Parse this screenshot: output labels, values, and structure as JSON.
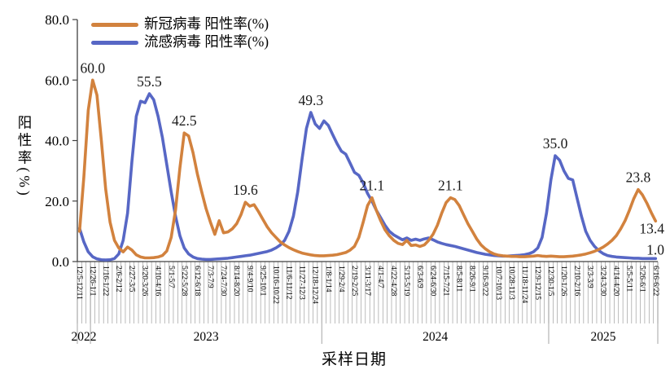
{
  "chart_data": {
    "type": "line",
    "title": "",
    "xlabel": "采样日期",
    "ylabel": "阳性率(%)",
    "ylim": [
      0,
      80
    ],
    "y_ticks": [
      "0.0",
      "20.0",
      "40.0",
      "60.0",
      "80.0"
    ],
    "grid": "off",
    "legend_position": "top-left",
    "label_interval_weeks": 3,
    "x_tick_labels": [
      "12/5-12/11",
      "12/26-1/1",
      "1/16-1/22",
      "2/6-2/12",
      "2/27-3/5",
      "3/20-3/26",
      "4/10-4/16",
      "5/1-5/7",
      "5/22-5/28",
      "6/12-6/18",
      "7/3-7/9",
      "7/24-7/30",
      "8/14-8/20",
      "9/4-9/10",
      "9/25-10/1",
      "10/16-10/22",
      "11/6-11/12",
      "11/27-12/3",
      "12/18-12/24",
      "1/8-1/14",
      "1/29-2/4",
      "2/19-2/25",
      "3/11-3/17",
      "4/1-4/7",
      "4/22-4/28",
      "5/13-5/19",
      "6/3-6/9",
      "6/24-6/30",
      "7/15-7/21",
      "8/5-8/11",
      "8/26-9/1",
      "9/16-9/22",
      "10/7-10/13",
      "10/28-11/3",
      "11/18-11/24",
      "12/9-12/15",
      "12/30-1/5",
      "1/20-1/26",
      "2/10-2/16",
      "3/3-3/9",
      "3/24-3/30",
      "4/14-4/20",
      "5/5-5/11",
      "5/26-6/1",
      "6/16-6/22"
    ],
    "year_sections": [
      {
        "label": "2022",
        "from_line": 0,
        "to_line": 3
      },
      {
        "label": "2023",
        "from_line": 3,
        "to_line": 56
      },
      {
        "label": "2024",
        "from_line": 56,
        "to_line": 108
      },
      {
        "label": "2025",
        "from_line": 108,
        "to_line": 133
      }
    ],
    "legend": [
      {
        "label": "新冠病毒 阳性率(%)",
        "color": "#D2823E"
      },
      {
        "label": "流感病毒 阳性率(%)",
        "color": "#5767C5"
      }
    ],
    "series": [
      {
        "name": "新冠病毒 阳性率(%)",
        "color": "#D2823E",
        "values": [
          10,
          28,
          50,
          60,
          55,
          40,
          24,
          13,
          7,
          4.5,
          3.2,
          4.8,
          3.8,
          2.2,
          1.5,
          1.2,
          1.2,
          1.3,
          1.5,
          2,
          3.5,
          8,
          17,
          31,
          42.5,
          41.5,
          36,
          29,
          23,
          17.5,
          13,
          9,
          13.5,
          9.5,
          9.8,
          10.8,
          12.5,
          15.5,
          19.6,
          18.3,
          18.8,
          16.5,
          14,
          11.5,
          9.5,
          8,
          6.5,
          5.5,
          4.6,
          3.9,
          3.3,
          2.8,
          2.5,
          2.2,
          2,
          1.9,
          1.9,
          2,
          2.1,
          2.3,
          2.6,
          3,
          3.8,
          5,
          8,
          13,
          18.5,
          21.1,
          17,
          13.5,
          10.5,
          8.5,
          7,
          6,
          5.6,
          7,
          5.3,
          5.5,
          5,
          5.5,
          7,
          9,
          12,
          16,
          19.5,
          21.1,
          20.5,
          18.5,
          15.5,
          12.5,
          10,
          7.5,
          5.5,
          4.2,
          3.2,
          2.5,
          2.1,
          1.9,
          1.8,
          1.7,
          1.7,
          1.6,
          1.6,
          1.7,
          1.8,
          2,
          1.8,
          1.7,
          1.8,
          1.7,
          1.6,
          1.6,
          1.7,
          1.8,
          2,
          2.2,
          2.5,
          2.9,
          3.4,
          4,
          4.8,
          5.8,
          7,
          8.6,
          10.8,
          13.5,
          17,
          20.8,
          23.8,
          22,
          19.3,
          16.2,
          13.4
        ]
      },
      {
        "name": "流感病毒 阳性率(%)",
        "color": "#5767C5",
        "values": [
          11,
          6.5,
          3.2,
          1.6,
          0.9,
          0.6,
          0.5,
          0.6,
          1,
          2.5,
          7,
          16,
          33,
          48,
          53,
          52.5,
          55.5,
          53.5,
          48,
          41,
          32,
          23,
          15,
          8.5,
          4.5,
          2.5,
          1.5,
          1,
          0.8,
          0.7,
          0.7,
          0.8,
          0.9,
          1,
          1.1,
          1.3,
          1.5,
          1.7,
          1.9,
          2.1,
          2.4,
          2.7,
          3,
          3.3,
          3.8,
          4.5,
          5.5,
          7,
          10,
          15,
          23,
          34,
          44,
          49.3,
          45.5,
          44,
          46.5,
          45,
          42,
          39,
          36.5,
          35.5,
          32.5,
          29.5,
          28.5,
          26,
          22.5,
          20,
          17,
          14.5,
          12,
          10,
          8.8,
          8,
          7.2,
          7.8,
          7,
          7.4,
          7,
          7.5,
          7.8,
          7.2,
          6.5,
          6,
          5.6,
          5.3,
          5,
          4.6,
          4.2,
          3.8,
          3.4,
          3,
          2.7,
          2.4,
          2.2,
          2,
          1.9,
          1.8,
          1.8,
          1.9,
          2,
          2.1,
          2.3,
          2.6,
          3.2,
          4.5,
          8,
          16,
          27,
          35,
          33.5,
          30,
          27.5,
          27,
          21,
          15,
          10,
          7,
          5,
          3.6,
          2.6,
          2,
          1.7,
          1.5,
          1.4,
          1.3,
          1.2,
          1.1,
          1.1,
          1,
          1,
          1,
          1
        ]
      }
    ],
    "annotations": [
      {
        "text": "60.0",
        "series": 0,
        "week": 3,
        "value": 60.0,
        "placement": "peak"
      },
      {
        "text": "55.5",
        "series": 1,
        "week": 16,
        "value": 55.5,
        "placement": "peak"
      },
      {
        "text": "42.5",
        "series": 0,
        "week": 24,
        "value": 42.5,
        "placement": "peak"
      },
      {
        "text": "19.6",
        "series": 0,
        "week": 38,
        "value": 19.6,
        "placement": "peak"
      },
      {
        "text": "49.3",
        "series": 1,
        "week": 53,
        "value": 49.3,
        "placement": "peak"
      },
      {
        "text": "21.1",
        "series": 0,
        "week": 67,
        "value": 21.1,
        "placement": "peak"
      },
      {
        "text": "21.1",
        "series": 0,
        "week": 85,
        "value": 21.1,
        "placement": "peak"
      },
      {
        "text": "35.0",
        "series": 1,
        "week": 109,
        "value": 35.0,
        "placement": "peak"
      },
      {
        "text": "23.8",
        "series": 0,
        "week": 128,
        "value": 23.8,
        "placement": "peak"
      },
      {
        "text": "13.4",
        "series": 0,
        "week": 132,
        "value": 13.4,
        "placement": "end"
      },
      {
        "text": "1.0",
        "series": 1,
        "week": 132,
        "value": 1.0,
        "placement": "end"
      }
    ]
  }
}
